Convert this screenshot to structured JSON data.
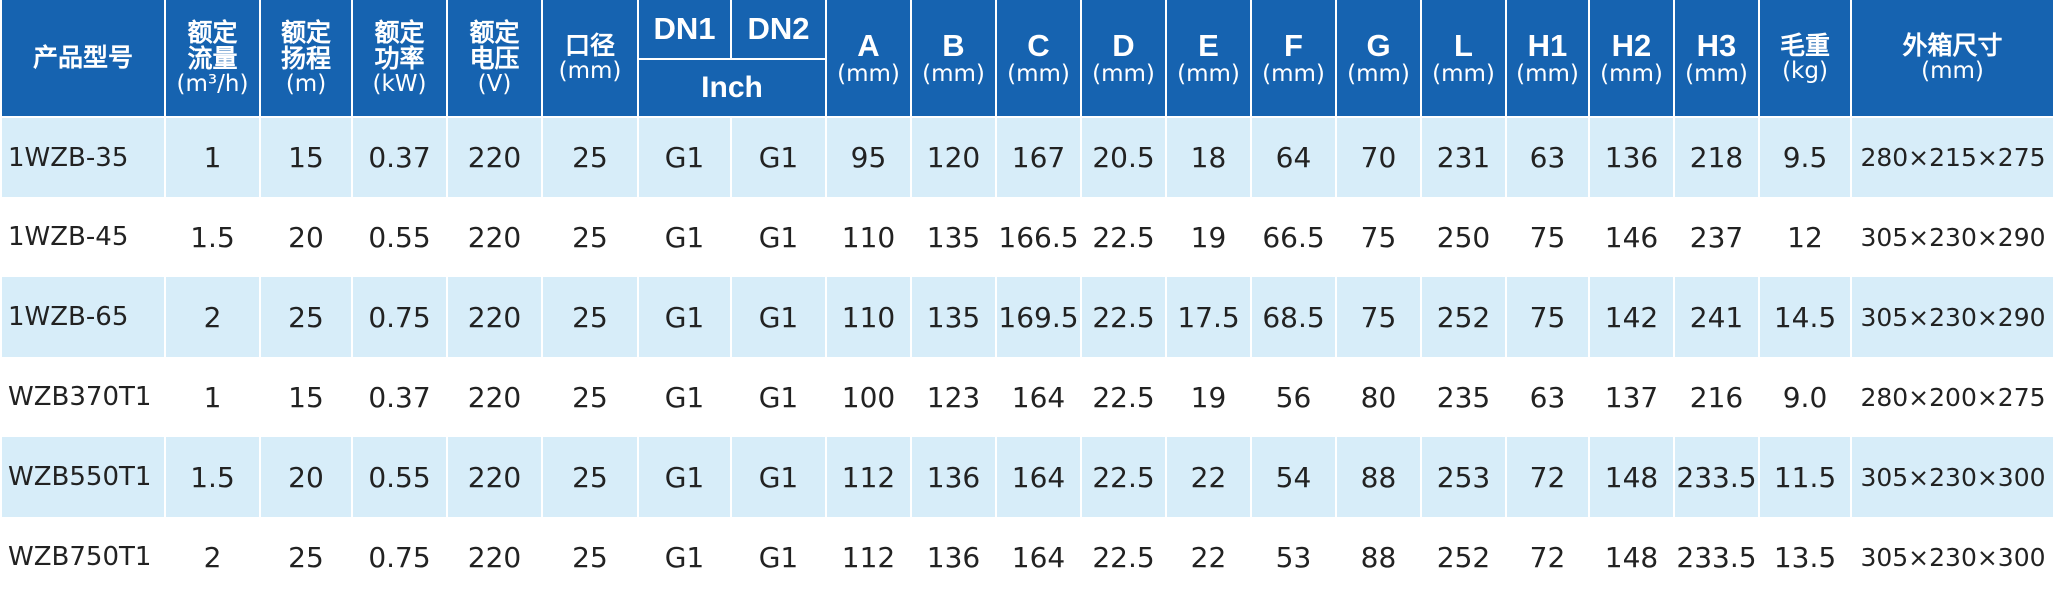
{
  "table": {
    "columns": [
      {
        "name": "产品型号"
      },
      {
        "name": "额定\n流量",
        "unit": "(m³/h)"
      },
      {
        "name": "额定\n扬程",
        "unit": "(m)"
      },
      {
        "name": "额定\n功率",
        "unit": "(kW)"
      },
      {
        "name": "额定\n电压",
        "unit": "(V)"
      },
      {
        "name": "口径",
        "unit": "(mm)"
      },
      {
        "name": "DN1"
      },
      {
        "name": "DN2"
      },
      {
        "name": "A",
        "unit": "(mm)"
      },
      {
        "name": "B",
        "unit": "(mm)"
      },
      {
        "name": "C",
        "unit": "(mm)"
      },
      {
        "name": "D",
        "unit": "(mm)"
      },
      {
        "name": "E",
        "unit": "(mm)"
      },
      {
        "name": "F",
        "unit": "(mm)"
      },
      {
        "name": "G",
        "unit": "(mm)"
      },
      {
        "name": "L",
        "unit": "(mm)"
      },
      {
        "name": "H1",
        "unit": "(mm)"
      },
      {
        "name": "H2",
        "unit": "(mm)"
      },
      {
        "name": "H3",
        "unit": "(mm)"
      },
      {
        "name": "毛重",
        "unit": "(kg)"
      },
      {
        "name": "外箱尺寸",
        "unit": "(mm)"
      }
    ],
    "group": "Inch",
    "rows": [
      [
        "1WZB-35",
        "1",
        "15",
        "0.37",
        "220",
        "25",
        "G1",
        "G1",
        "95",
        "120",
        "167",
        "20.5",
        "18",
        "64",
        "70",
        "231",
        "63",
        "136",
        "218",
        "9.5",
        "280×215×275"
      ],
      [
        "1WZB-45",
        "1.5",
        "20",
        "0.55",
        "220",
        "25",
        "G1",
        "G1",
        "110",
        "135",
        "166.5",
        "22.5",
        "19",
        "66.5",
        "75",
        "250",
        "75",
        "146",
        "237",
        "12",
        "305×230×290"
      ],
      [
        "1WZB-65",
        "2",
        "25",
        "0.75",
        "220",
        "25",
        "G1",
        "G1",
        "110",
        "135",
        "169.5",
        "22.5",
        "17.5",
        "68.5",
        "75",
        "252",
        "75",
        "142",
        "241",
        "14.5",
        "305×230×290"
      ],
      [
        "WZB370T1",
        "1",
        "15",
        "0.37",
        "220",
        "25",
        "G1",
        "G1",
        "100",
        "123",
        "164",
        "22.5",
        "19",
        "56",
        "80",
        "235",
        "63",
        "137",
        "216",
        "9.0",
        "280×200×275"
      ],
      [
        "WZB550T1",
        "1.5",
        "20",
        "0.55",
        "220",
        "25",
        "G1",
        "G1",
        "112",
        "136",
        "164",
        "22.5",
        "22",
        "54",
        "88",
        "253",
        "72",
        "148",
        "233.5",
        "11.5",
        "305×230×300"
      ],
      [
        "WZB750T1",
        "2",
        "25",
        "0.75",
        "220",
        "25",
        "G1",
        "G1",
        "112",
        "136",
        "164",
        "22.5",
        "22",
        "53",
        "88",
        "252",
        "72",
        "148",
        "233.5",
        "13.5",
        "305×230×300"
      ]
    ]
  }
}
